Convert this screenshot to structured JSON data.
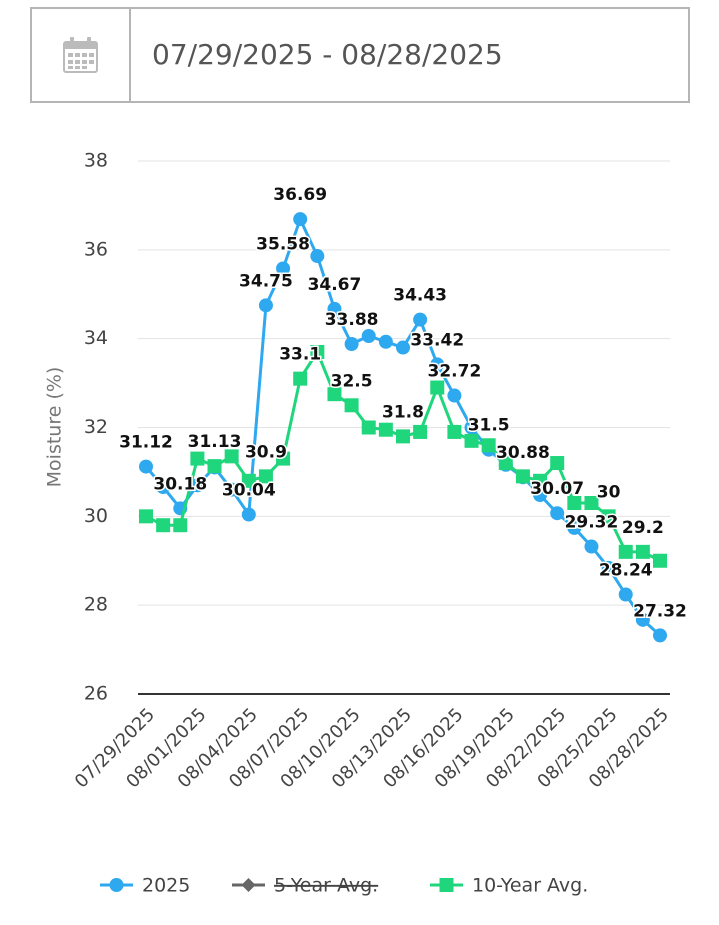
{
  "date_range": "07/29/2025 - 08/28/2025",
  "chart_data": {
    "type": "line",
    "y_label": "Moisture (%)",
    "categories": [
      "07/29/2025",
      null,
      null,
      "08/01/2025",
      null,
      null,
      "08/04/2025",
      null,
      null,
      "08/07/2025",
      null,
      null,
      "08/10/2025",
      null,
      null,
      "08/13/2025",
      null,
      null,
      "08/16/2025",
      null,
      null,
      "08/19/2025",
      null,
      null,
      "08/22/2025",
      null,
      null,
      "08/25/2025",
      null,
      null,
      "08/28/2025"
    ],
    "series": [
      {
        "name": "2025",
        "color": "#2ea8ef",
        "marker": "circle",
        "values": [
          31.12,
          30.66,
          30.18,
          30.7,
          31.1,
          30.6,
          30.04,
          34.75,
          35.58,
          36.69,
          35.86,
          34.67,
          33.88,
          34.06,
          33.93,
          33.8,
          34.43,
          33.42,
          32.72,
          32.0,
          31.5,
          31.16,
          30.88,
          30.48,
          30.07,
          29.74,
          29.32,
          28.84,
          28.24,
          27.67,
          27.32
        ],
        "value_labels": [
          "31.12",
          null,
          "30.18",
          null,
          null,
          null,
          "30.04",
          "34.75",
          "35.58",
          "36.69",
          null,
          "34.67",
          "33.88",
          null,
          null,
          null,
          "34.43",
          "33.42",
          "32.72",
          null,
          "31.5",
          null,
          "30.88",
          null,
          "30.07",
          null,
          "29.32",
          null,
          "28.24",
          null,
          "27.32"
        ]
      },
      {
        "name": "5-Year Avg.",
        "color": "#666666",
        "marker": "diamond",
        "hidden": true
      },
      {
        "name": "10-Year Avg.",
        "color": "#1fd67c",
        "marker": "square",
        "values": [
          30.0,
          29.8,
          29.8,
          31.3,
          31.13,
          31.35,
          30.8,
          30.9,
          31.3,
          33.1,
          33.7,
          32.75,
          32.5,
          32.0,
          31.95,
          31.8,
          31.9,
          32.9,
          31.9,
          31.7,
          31.6,
          31.2,
          30.9,
          30.8,
          31.2,
          30.3,
          30.3,
          30.0,
          29.2,
          29.2,
          29.0
        ],
        "value_labels": [
          null,
          null,
          null,
          null,
          "31.13",
          null,
          null,
          "30.9",
          null,
          "33.1",
          null,
          null,
          "32.5",
          null,
          null,
          "31.8",
          null,
          null,
          null,
          null,
          null,
          null,
          null,
          null,
          null,
          null,
          null,
          "30",
          null,
          "29.2",
          null
        ]
      }
    ],
    "ylim": [
      26,
      38
    ],
    "yticks": [
      26,
      28,
      30,
      32,
      34,
      36,
      38
    ],
    "grid": true,
    "legend": "bottom"
  }
}
